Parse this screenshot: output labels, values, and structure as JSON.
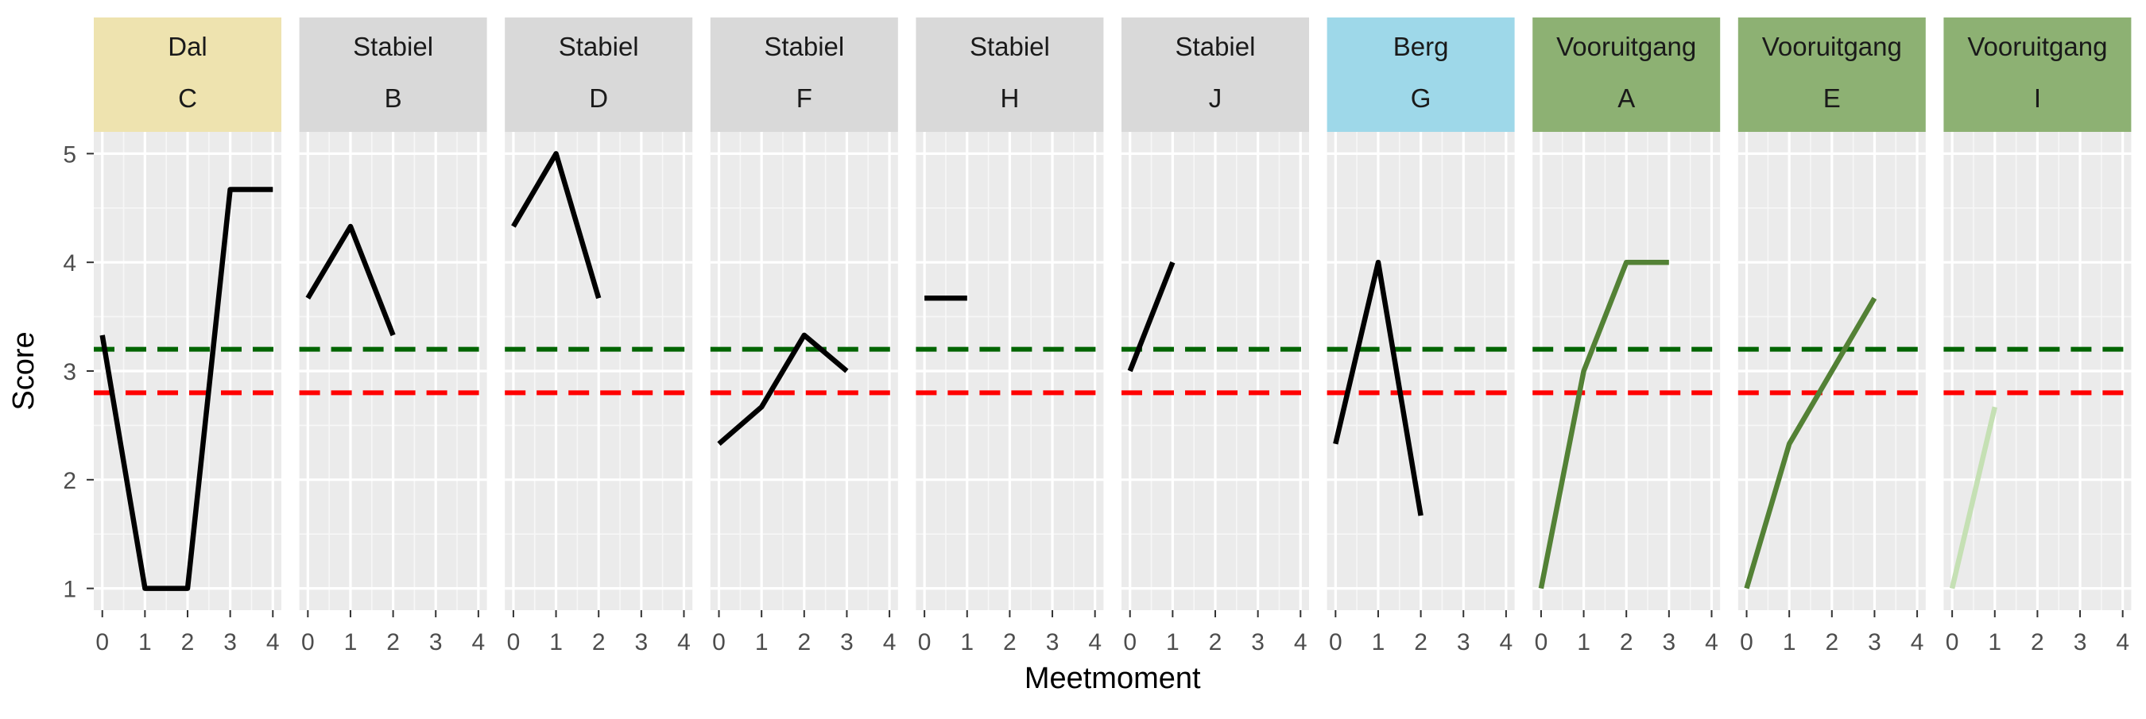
{
  "chart_data": {
    "type": "line",
    "xlabel": "Meetmoment",
    "ylabel": "Score",
    "x_ticks": [
      0,
      1,
      2,
      3,
      4
    ],
    "y_ticks": [
      1,
      2,
      3,
      4,
      5
    ],
    "xlim": [
      -0.2,
      4.2
    ],
    "ylim": [
      0.8,
      5.2
    ],
    "reference_lines": [
      {
        "name": "green-reference-line",
        "y": 3.2,
        "color": "#006400",
        "style": "dashed"
      },
      {
        "name": "red-reference-line",
        "y": 2.8,
        "color": "#FF0000",
        "style": "dashed"
      }
    ],
    "panels": [
      {
        "category": "Dal",
        "id": "C",
        "strip_color": "#EEE3AF",
        "line_color": "#000000",
        "x": [
          0,
          1,
          2,
          3,
          4
        ],
        "y": [
          3.33,
          1.0,
          1.0,
          4.67,
          4.67
        ]
      },
      {
        "category": "Stabiel",
        "id": "B",
        "strip_color": "#D9D9D9",
        "line_color": "#000000",
        "x": [
          0,
          1,
          2
        ],
        "y": [
          3.67,
          4.33,
          3.33
        ]
      },
      {
        "category": "Stabiel",
        "id": "D",
        "strip_color": "#D9D9D9",
        "line_color": "#000000",
        "x": [
          0,
          1,
          2
        ],
        "y": [
          4.33,
          5.0,
          3.67
        ]
      },
      {
        "category": "Stabiel",
        "id": "F",
        "strip_color": "#D9D9D9",
        "line_color": "#000000",
        "x": [
          0,
          1,
          2,
          3
        ],
        "y": [
          2.33,
          2.67,
          3.33,
          3.0
        ]
      },
      {
        "category": "Stabiel",
        "id": "H",
        "strip_color": "#D9D9D9",
        "line_color": "#000000",
        "x": [
          0,
          1
        ],
        "y": [
          3.67,
          3.67
        ]
      },
      {
        "category": "Stabiel",
        "id": "J",
        "strip_color": "#D9D9D9",
        "line_color": "#000000",
        "x": [
          0,
          1
        ],
        "y": [
          3.0,
          4.0
        ]
      },
      {
        "category": "Berg",
        "id": "G",
        "strip_color": "#9ED8E9",
        "line_color": "#000000",
        "x": [
          0,
          1,
          2
        ],
        "y": [
          2.33,
          4.0,
          1.67
        ]
      },
      {
        "category": "Vooruitgang",
        "id": "A",
        "strip_color": "#8DB173",
        "line_color": "#538135",
        "x": [
          0,
          1,
          2,
          3
        ],
        "y": [
          1.0,
          3.0,
          4.0,
          4.0
        ]
      },
      {
        "category": "Vooruitgang",
        "id": "E",
        "strip_color": "#8DB173",
        "line_color": "#538135",
        "x": [
          0,
          1,
          3
        ],
        "y": [
          1.0,
          2.33,
          3.67
        ]
      },
      {
        "category": "Vooruitgang",
        "id": "I",
        "strip_color": "#8DB173",
        "line_color": "#C5E0B4",
        "x": [
          0,
          1
        ],
        "y": [
          1.0,
          2.67
        ]
      }
    ]
  }
}
